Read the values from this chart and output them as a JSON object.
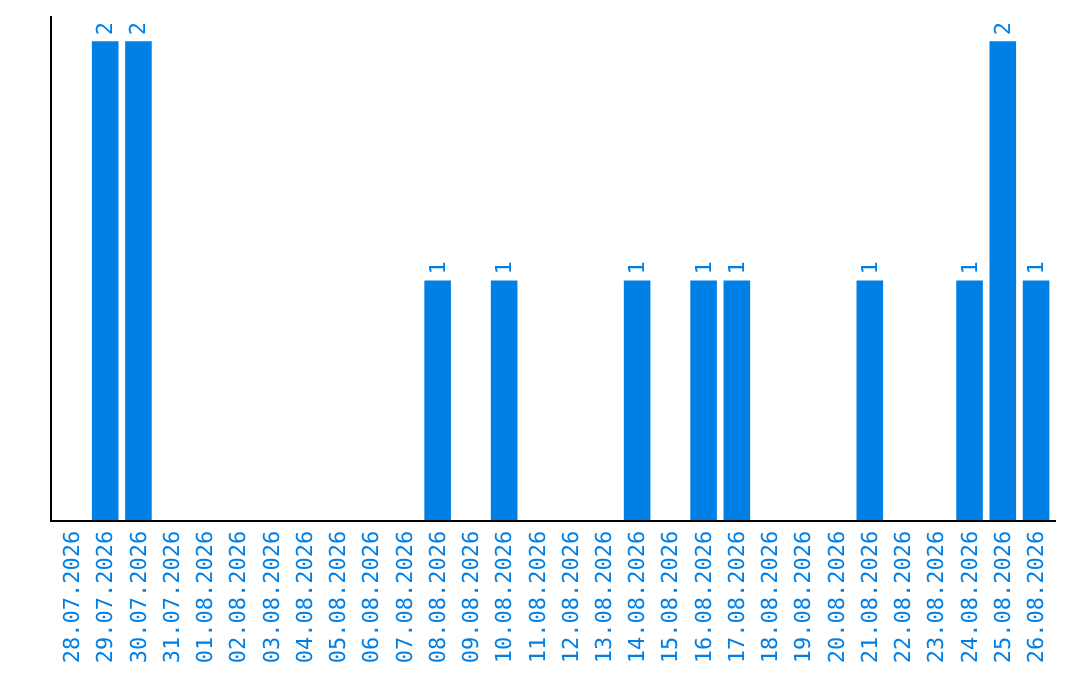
{
  "chart_data": {
    "type": "bar",
    "categories": [
      "28.07.2026",
      "29.07.2026",
      "30.07.2026",
      "31.07.2026",
      "01.08.2026",
      "02.08.2026",
      "03.08.2026",
      "04.08.2026",
      "05.08.2026",
      "06.08.2026",
      "07.08.2026",
      "08.08.2026",
      "09.08.2026",
      "10.08.2026",
      "11.08.2026",
      "12.08.2026",
      "13.08.2026",
      "14.08.2026",
      "15.08.2026",
      "16.08.2026",
      "17.08.2026",
      "18.08.2026",
      "19.08.2026",
      "20.08.2026",
      "21.08.2026",
      "22.08.2026",
      "23.08.2026",
      "24.08.2026",
      "25.08.2026",
      "26.08.2026"
    ],
    "values": [
      0,
      2,
      2,
      0,
      0,
      0,
      0,
      0,
      0,
      0,
      0,
      1,
      0,
      1,
      0,
      0,
      0,
      1,
      0,
      1,
      1,
      0,
      0,
      0,
      1,
      0,
      0,
      1,
      2,
      1
    ],
    "value_labels": [
      null,
      "2",
      "2",
      null,
      null,
      null,
      null,
      null,
      null,
      null,
      null,
      "1",
      null,
      "1",
      null,
      null,
      null,
      "1",
      null,
      "1",
      "1",
      null,
      null,
      null,
      "1",
      null,
      null,
      "1",
      "2",
      "1"
    ],
    "color": "#007fe5",
    "grid": false,
    "legend": false,
    "tick_labels": "x"
  }
}
